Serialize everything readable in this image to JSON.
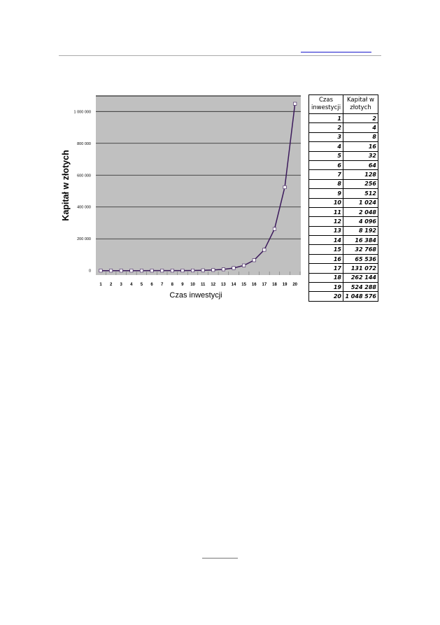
{
  "colors": {
    "plot_bg": "#c0c0c0",
    "line": "#3c1a5c",
    "header_rule": "#aaaaaa",
    "link_rule": "#1a1acc"
  },
  "chart_data": {
    "type": "line",
    "x": [
      1,
      2,
      3,
      4,
      5,
      6,
      7,
      8,
      9,
      10,
      11,
      12,
      13,
      14,
      15,
      16,
      17,
      18,
      19,
      20
    ],
    "values": [
      2,
      4,
      8,
      16,
      32,
      64,
      128,
      256,
      512,
      1024,
      2048,
      4096,
      8192,
      16384,
      32768,
      65536,
      131072,
      262144,
      524288,
      1048576
    ],
    "xlabel": "Czas inwestycji",
    "ylabel": "Kapitał w złotych",
    "ylim": [
      0,
      1000000
    ],
    "yticks": [
      "0",
      "200 000",
      "400 000",
      "600 000",
      "800 000",
      "1 000 000"
    ],
    "xticks": [
      "1",
      "2",
      "3",
      "4",
      "5",
      "6",
      "7",
      "8",
      "9",
      "10",
      "11",
      "12",
      "13",
      "14",
      "15",
      "16",
      "17",
      "18",
      "19",
      "20"
    ],
    "grid": true,
    "marker": "square"
  },
  "table": {
    "headers": [
      "Czas inwestycji",
      "Kapitał w złotych"
    ],
    "rows": [
      [
        "1",
        "2"
      ],
      [
        "2",
        "4"
      ],
      [
        "3",
        "8"
      ],
      [
        "4",
        "16"
      ],
      [
        "5",
        "32"
      ],
      [
        "6",
        "64"
      ],
      [
        "7",
        "128"
      ],
      [
        "8",
        "256"
      ],
      [
        "9",
        "512"
      ],
      [
        "10",
        "1 024"
      ],
      [
        "11",
        "2 048"
      ],
      [
        "12",
        "4 096"
      ],
      [
        "13",
        "8 192"
      ],
      [
        "14",
        "16 384"
      ],
      [
        "15",
        "32 768"
      ],
      [
        "16",
        "65 536"
      ],
      [
        "17",
        "131 072"
      ],
      [
        "18",
        "262 144"
      ],
      [
        "19",
        "524 288"
      ],
      [
        "20",
        "1 048 576"
      ]
    ]
  }
}
